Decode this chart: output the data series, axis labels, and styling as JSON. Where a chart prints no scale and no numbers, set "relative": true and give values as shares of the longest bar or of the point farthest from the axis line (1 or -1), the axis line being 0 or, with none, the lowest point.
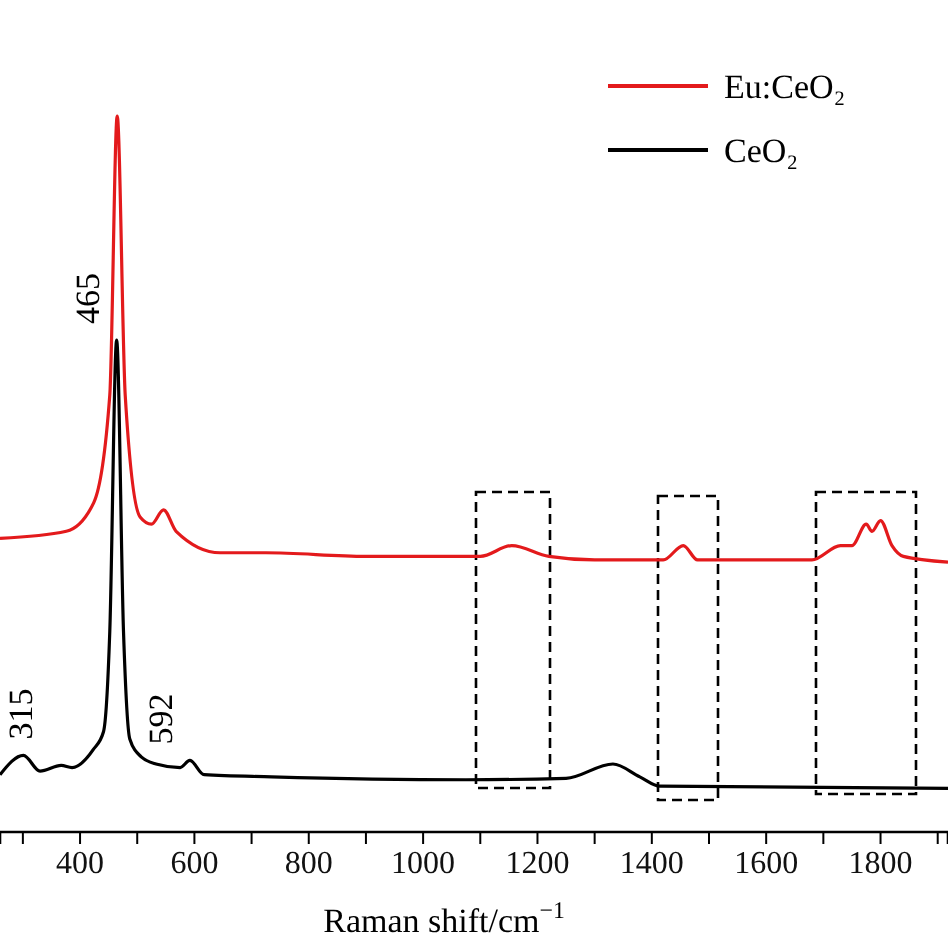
{
  "chart_data": {
    "type": "line",
    "relative": true,
    "xlabel": "Raman shift/cm$^{−1}$",
    "xlim": [
      260,
      1918
    ],
    "xticks": [
      {
        "value": 300,
        "label": null
      },
      400,
      {
        "value": 500,
        "label": null
      },
      600,
      {
        "value": 700,
        "label": null
      },
      800,
      {
        "value": 900,
        "label": null
      },
      1000,
      {
        "value": 1100,
        "label": null
      },
      1200,
      {
        "value": 1300,
        "label": null
      },
      1400,
      {
        "value": 1500,
        "label": null
      },
      1600,
      {
        "value": 1700,
        "label": null
      },
      1800,
      {
        "value": 1900,
        "label": null
      }
    ],
    "legend": "top right",
    "tick_labels": "x",
    "series": [
      {
        "name": "Eu:CeO₂",
        "color": "#e31a1c",
        "x": [
          260,
          376,
          424,
          452,
          465,
          479,
          505,
          525,
          546,
          568,
          645,
          725,
          900,
          1100,
          1155,
          1220,
          1300,
          1420,
          1455,
          1480,
          1680,
          1730,
          1750,
          1775,
          1785,
          1800,
          1820,
          1840,
          1918
        ],
        "values": [
          0.41,
          0.42,
          0.46,
          0.61,
          1.0,
          0.61,
          0.44,
          0.43,
          0.45,
          0.42,
          0.39,
          0.39,
          0.385,
          0.385,
          0.4,
          0.385,
          0.38,
          0.38,
          0.4,
          0.38,
          0.38,
          0.4,
          0.4,
          0.43,
          0.42,
          0.435,
          0.4,
          0.385,
          0.377
        ]
      },
      {
        "name": "CeO₂",
        "color": "#000000",
        "x": [
          260,
          301,
          330,
          367,
          386,
          423,
          441,
          452,
          464,
          476,
          487,
          507,
          533,
          575,
          592,
          617,
          735,
          1075,
          1250,
          1332,
          1379,
          1414,
          1918
        ],
        "values": [
          0.08,
          0.107,
          0.085,
          0.093,
          0.09,
          0.115,
          0.14,
          0.28,
          0.687,
          0.28,
          0.13,
          0.105,
          0.095,
          0.09,
          0.1,
          0.08,
          0.077,
          0.073,
          0.075,
          0.095,
          0.077,
          0.064,
          0.061
        ]
      }
    ],
    "annotations": [
      {
        "text": "315",
        "x": 315,
        "y": 0.107
      },
      {
        "text": "465",
        "x": 465,
        "y": 0.687
      },
      {
        "text": "592",
        "x": 592,
        "y": 0.1
      }
    ]
  }
}
